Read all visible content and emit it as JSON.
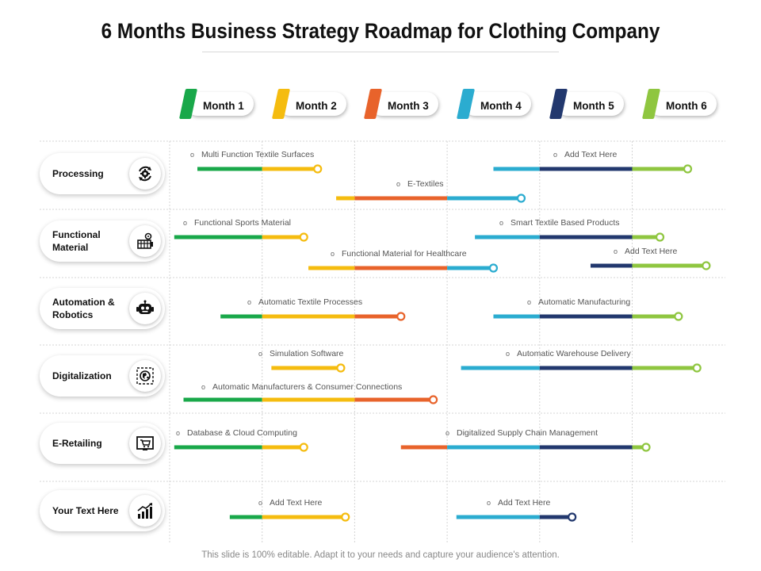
{
  "title": "6 Months Business Strategy Roadmap for Clothing Company",
  "footer": "This slide is 100% editable. Adapt it to your needs and capture your audience's attention.",
  "months": [
    {
      "label": "Month 1",
      "color": "#19a84a"
    },
    {
      "label": "Month 2",
      "color": "#f5bc0f"
    },
    {
      "label": "Month 3",
      "color": "#e8632b"
    },
    {
      "label": "Month 4",
      "color": "#2bacd0"
    },
    {
      "label": "Month 5",
      "color": "#22386e"
    },
    {
      "label": "Month 6",
      "color": "#8fc640"
    }
  ],
  "rows": [
    {
      "label": "Processing",
      "icon": "gear-cycle-icon"
    },
    {
      "label": "Functional Material",
      "icon": "fabric-machine-icon"
    },
    {
      "label": "Automation & Robotics",
      "icon": "robot-icon"
    },
    {
      "label": "Digitalization",
      "icon": "digital-globe-icon"
    },
    {
      "label": "E-Retailing",
      "icon": "cart-screen-icon"
    },
    {
      "label": "Your Text Here",
      "icon": "growth-chart-icon"
    }
  ],
  "tasks": [
    {
      "label": "Multi Function Textile Surfaces",
      "start": 0.3,
      "end": 1.6
    },
    {
      "label": "Add Text Here",
      "start": 3.5,
      "end": 5.6
    },
    {
      "label": "E-Textiles",
      "start": 1.8,
      "end": 3.8
    },
    {
      "label": "Functional Sports Material",
      "start": 0.05,
      "end": 1.45
    },
    {
      "label": "Smart Textile Based Products",
      "start": 3.3,
      "end": 5.3
    },
    {
      "label": "Functional Material for Healthcare",
      "start": 1.5,
      "end": 3.5
    },
    {
      "label": "Add Text Here",
      "start": 4.55,
      "end": 5.8
    },
    {
      "label": "Automatic Textile Processes",
      "start": 0.55,
      "end": 2.5
    },
    {
      "label": "Automatic Manufacturing",
      "start": 3.5,
      "end": 5.5
    },
    {
      "label": "Simulation Software",
      "start": 1.1,
      "end": 1.85
    },
    {
      "label": "Automatic Warehouse Delivery",
      "start": 3.15,
      "end": 5.7
    },
    {
      "label": "Automatic Manufacturers & Consumer Connections",
      "start": 0.15,
      "end": 2.85
    },
    {
      "label": "Database & Cloud Computing",
      "start": 0.05,
      "end": 1.45
    },
    {
      "label": "Digitalized Supply Chain Management",
      "start": 2.5,
      "end": 5.15
    },
    {
      "label": "Add Text Here",
      "start": 0.65,
      "end": 1.9
    },
    {
      "label": "Add Text Here",
      "start": 3.1,
      "end": 4.35
    }
  ]
}
